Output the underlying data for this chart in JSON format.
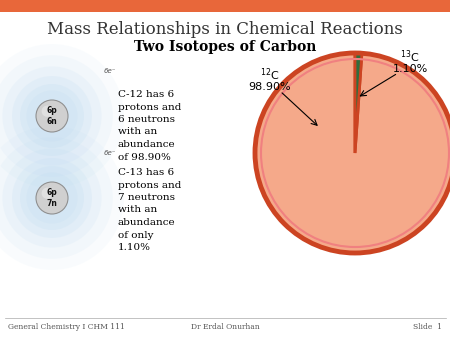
{
  "title": "Mass Relationships in Chemical Reactions",
  "subtitle": "Two Isotopes of Carbon",
  "bg_color": "#ffffff",
  "header_bar_color": "#e8673a",
  "pie_values": [
    98.9,
    1.1
  ],
  "pie_colors": [
    "#f5a98a",
    "#2e6e3e"
  ],
  "pie_edge_color": "#cc4422",
  "pie_edge_width": 2.0,
  "pie_inner_edge_color": "#f08080",
  "pie_inner_edge_width": 1.0,
  "text_c12": "C-12 has 6\nprotons and\n6 neutrons\nwith an\nabundance\nof 98.90%",
  "text_c13": "C-13 has 6\nprotons and\n7 neutrons\nwith an\nabundance\nof only\n1.10%",
  "footer_left": "General Chemistry I CHM 111",
  "footer_center": "Dr Erdal Onurhan",
  "footer_right": "Slide  1",
  "atom1_label": "6p\n6n",
  "atom2_label": "6p\n7n",
  "electron_label": "6e⁻",
  "shell_color": "#b8d8f0",
  "nucleus_color_light": "#d0d0d0",
  "nucleus_color_dark": "#909090"
}
